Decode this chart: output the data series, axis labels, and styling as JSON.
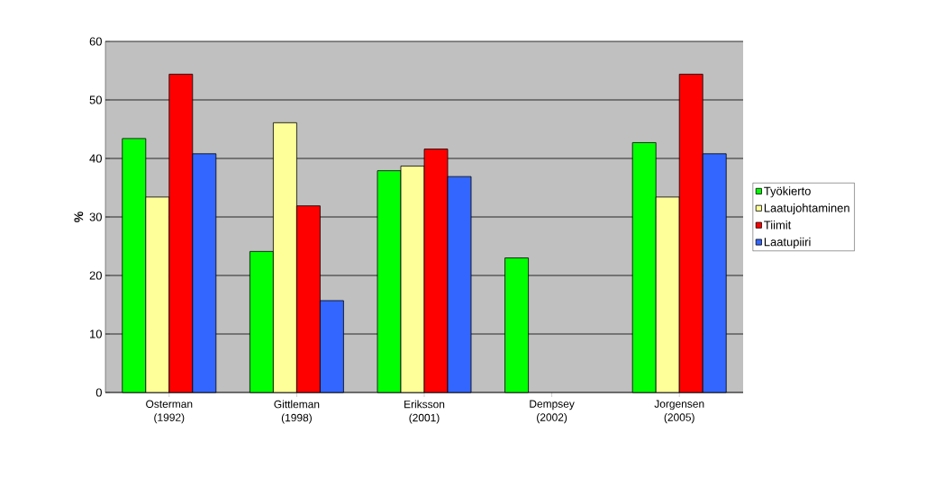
{
  "chart_data": {
    "type": "bar",
    "ylabel": "%",
    "categories": [
      "Osterman (1992)",
      "Gittleman (1998)",
      "Eriksson (2001)",
      "Dempsey (2002)",
      "Jorgensen (2005)"
    ],
    "series": [
      {
        "name": "Työkierto",
        "color": "#00ff00",
        "values": [
          43.4,
          24.1,
          37.9,
          23.0,
          42.7
        ]
      },
      {
        "name": "Laatujohtaminen",
        "color": "#ffff99",
        "values": [
          33.4,
          46.1,
          38.7,
          null,
          33.4
        ]
      },
      {
        "name": "Tiimit",
        "color": "#ff0000",
        "values": [
          54.4,
          31.9,
          41.6,
          null,
          54.4
        ]
      },
      {
        "name": "Laatupiiri",
        "color": "#3366ff",
        "values": [
          40.8,
          15.7,
          36.9,
          null,
          40.8
        ]
      }
    ],
    "ylim": [
      0,
      60
    ],
    "yticks": [
      0,
      10,
      20,
      30,
      40,
      50,
      60
    ],
    "grid": "y",
    "legend": "right"
  }
}
